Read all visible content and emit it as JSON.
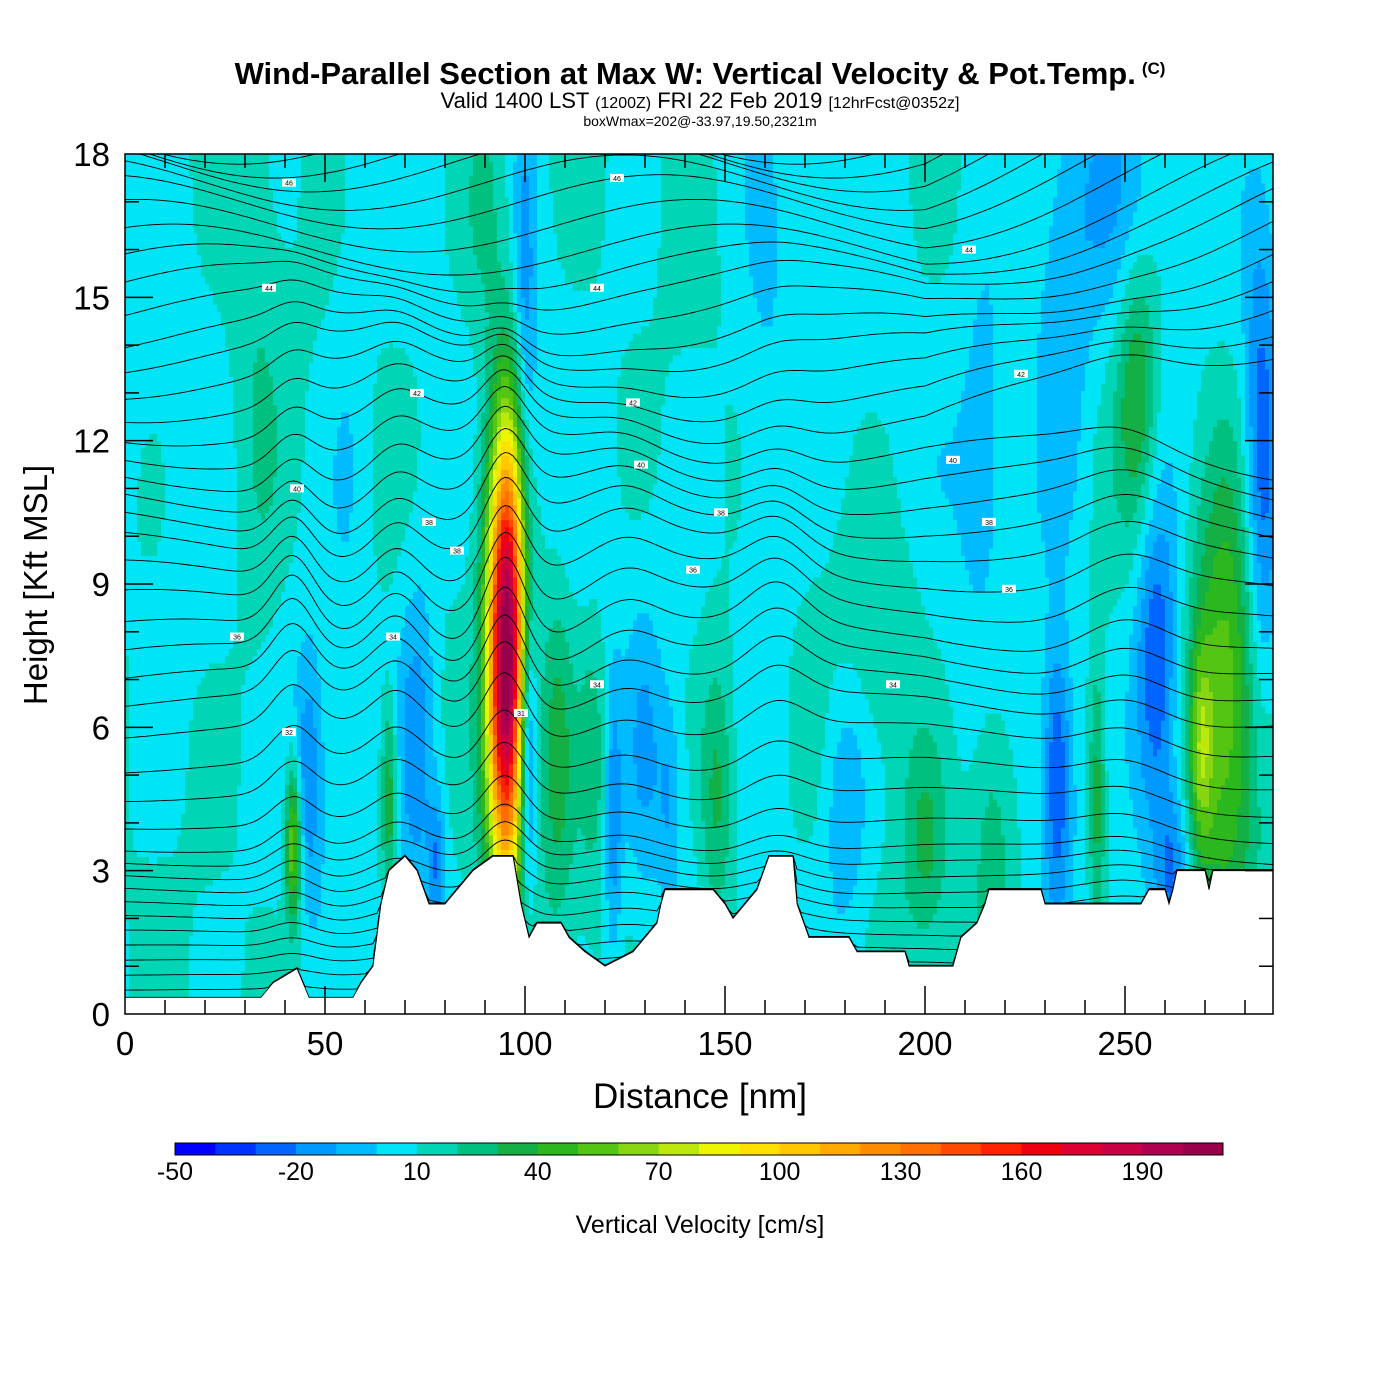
{
  "chart_data": {
    "type": "heatmap",
    "title": "Wind-Parallel Section at Max W: Vertical Velocity & Pot.Temp.",
    "title_mark": "(C)",
    "subtitle_parts": {
      "valid": "Valid 1400 LST",
      "zulu": "(1200Z)",
      "date": "FRI 22 Feb 2019",
      "forecast": "[12hrFcst@0352z]"
    },
    "box_info": "boxWmax=202@-33.97,19.50,2321m",
    "xlabel": "Distance [nm]",
    "ylabel": "Height [Kft MSL]",
    "xlim": [
      0,
      287
    ],
    "ylim": [
      0,
      18
    ],
    "x_ticks": [
      0,
      50,
      100,
      150,
      200,
      250
    ],
    "y_ticks": [
      0,
      3,
      6,
      9,
      12,
      15,
      18
    ],
    "colorbar": {
      "label": "Vertical Velocity [cm/s]",
      "min": -50,
      "max": 210,
      "step": 10,
      "tick_labels": [
        -50,
        -20,
        10,
        40,
        70,
        100,
        130,
        160,
        190
      ],
      "colors": [
        "#0000ff",
        "#0033ff",
        "#0066ff",
        "#0099ff",
        "#00bbff",
        "#00e5f5",
        "#00d5b5",
        "#00c080",
        "#15b045",
        "#2ab81e",
        "#55c514",
        "#88d511",
        "#bde80c",
        "#eef500",
        "#ffe000",
        "#ffc800",
        "#ffaa00",
        "#ff8c00",
        "#ff6e00",
        "#ff4a00",
        "#ff2200",
        "#ee0011",
        "#dd0033",
        "#c80044",
        "#b00050",
        "#98004a"
      ]
    },
    "background_w_cm_s": 8,
    "w_features": [
      {
        "x": 95.5,
        "z": 7.5,
        "sx": 3.2,
        "sz": 3.3,
        "w": 200
      },
      {
        "x": 92,
        "z": 6.5,
        "sx": 3,
        "sz": 3,
        "w": 20
      },
      {
        "x": 100.5,
        "z": 5.5,
        "sx": 1.6,
        "sz": 2.2,
        "w": -50
      },
      {
        "x": 42,
        "z": 3.6,
        "sx": 1.4,
        "sz": 1.2,
        "w": 55
      },
      {
        "x": 46,
        "z": 5,
        "sx": 2.5,
        "sz": 1.8,
        "w": -25
      },
      {
        "x": 66,
        "z": 4.5,
        "sx": 1.5,
        "sz": 1.5,
        "w": 35
      },
      {
        "x": 73,
        "z": 5.8,
        "sx": 3.5,
        "sz": 2.5,
        "w": -25
      },
      {
        "x": 78,
        "z": 3.2,
        "sx": 1.5,
        "sz": 1,
        "w": -25
      },
      {
        "x": 108,
        "z": 5.5,
        "sx": 3,
        "sz": 2.5,
        "w": 25
      },
      {
        "x": 117,
        "z": 5.5,
        "sx": 2.5,
        "sz": 2,
        "w": 18
      },
      {
        "x": 122,
        "z": 4,
        "sx": 1.5,
        "sz": 2,
        "w": -25
      },
      {
        "x": 130,
        "z": 5.5,
        "sx": 3,
        "sz": 2,
        "w": -15
      },
      {
        "x": 136,
        "z": 4.5,
        "sx": 2,
        "sz": 1.5,
        "w": -15
      },
      {
        "x": 148,
        "z": 4.5,
        "sx": 3,
        "sz": 2,
        "w": 25
      },
      {
        "x": 180,
        "z": 4.5,
        "sx": 4,
        "sz": 2,
        "w": -20
      },
      {
        "x": 200,
        "z": 3.5,
        "sx": 4,
        "sz": 1.5,
        "w": 22
      },
      {
        "x": 217,
        "z": 3.8,
        "sx": 4,
        "sz": 2.5,
        "w": 20
      },
      {
        "x": 233,
        "z": 5,
        "sx": 2.5,
        "sz": 2,
        "w": -38
      },
      {
        "x": 243,
        "z": 4.5,
        "sx": 1.5,
        "sz": 2,
        "w": 30
      },
      {
        "x": 258,
        "z": 7.2,
        "sx": 4,
        "sz": 2.5,
        "w": -42
      },
      {
        "x": 262,
        "z": 3,
        "sx": 3,
        "sz": 1.2,
        "w": -28
      },
      {
        "x": 275,
        "z": 6.5,
        "sx": 6,
        "sz": 3.5,
        "w": 48
      },
      {
        "x": 269,
        "z": 5.5,
        "sx": 2,
        "sz": 1.5,
        "w": 35
      },
      {
        "x": 253,
        "z": 13,
        "sx": 3.5,
        "sz": 2,
        "w": 32
      },
      {
        "x": 284,
        "z": 11.5,
        "sx": 3,
        "sz": 3.5,
        "w": -35
      },
      {
        "x": 234,
        "z": 14,
        "sx": 5,
        "sz": 3,
        "w": -18
      },
      {
        "x": 215,
        "z": 12,
        "sx": 5,
        "sz": 3,
        "w": -14
      },
      {
        "x": 245,
        "z": 17,
        "sx": 8,
        "sz": 2,
        "w": -15
      },
      {
        "x": 100,
        "z": 14.5,
        "sx": 2,
        "sz": 3.5,
        "w": -22
      },
      {
        "x": 90,
        "z": 17,
        "sx": 4,
        "sz": 2,
        "w": 18
      },
      {
        "x": 33,
        "z": 12,
        "sx": 5,
        "sz": 4,
        "w": 12
      },
      {
        "x": 56,
        "z": 12,
        "sx": 4,
        "sz": 4,
        "w": -8
      },
      {
        "x": 160,
        "z": 12,
        "sx": 5,
        "sz": 4,
        "w": -10
      },
      {
        "x": 188,
        "z": 8,
        "sx": 8,
        "sz": 2,
        "w": 12
      }
    ],
    "terrain": [
      [
        0,
        0.35
      ],
      [
        34,
        0.35
      ],
      [
        37,
        0.65
      ],
      [
        43,
        0.95
      ],
      [
        46,
        0.35
      ],
      [
        57,
        0.35
      ],
      [
        59,
        0.65
      ],
      [
        62,
        1.0
      ],
      [
        64,
        2.3
      ],
      [
        66,
        3.0
      ],
      [
        70,
        3.3
      ],
      [
        73,
        3.0
      ],
      [
        76,
        2.3
      ],
      [
        80,
        2.3
      ],
      [
        83,
        2.6
      ],
      [
        87,
        3.0
      ],
      [
        92,
        3.3
      ],
      [
        97,
        3.3
      ],
      [
        99,
        2.3
      ],
      [
        101,
        1.6
      ],
      [
        103,
        1.9
      ],
      [
        109,
        1.9
      ],
      [
        111,
        1.6
      ],
      [
        115,
        1.3
      ],
      [
        120,
        1.0
      ],
      [
        127,
        1.3
      ],
      [
        130,
        1.6
      ],
      [
        133,
        1.9
      ],
      [
        134,
        2.3
      ],
      [
        135,
        2.6
      ],
      [
        147,
        2.6
      ],
      [
        150,
        2.3
      ],
      [
        152,
        2.0
      ],
      [
        155,
        2.3
      ],
      [
        158,
        2.6
      ],
      [
        161,
        3.3
      ],
      [
        167,
        3.3
      ],
      [
        168,
        2.3
      ],
      [
        171,
        1.6
      ],
      [
        181,
        1.6
      ],
      [
        183,
        1.3
      ],
      [
        195,
        1.3
      ],
      [
        196,
        1.0
      ],
      [
        207,
        1.0
      ],
      [
        209,
        1.6
      ],
      [
        213,
        1.9
      ],
      [
        215,
        2.3
      ],
      [
        216,
        2.6
      ],
      [
        229,
        2.6
      ],
      [
        230,
        2.3
      ],
      [
        254,
        2.3
      ],
      [
        256,
        2.6
      ],
      [
        260,
        2.6
      ],
      [
        261,
        2.3
      ],
      [
        262,
        2.6
      ],
      [
        263,
        3.0
      ],
      [
        270,
        3.0
      ],
      [
        271,
        2.6
      ],
      [
        272,
        3.0
      ],
      [
        287,
        3.0
      ]
    ],
    "theta_contours": {
      "base_values": [
        294,
        294.5,
        295,
        295.5,
        296,
        296.5,
        297,
        297.5,
        298,
        298.5,
        299,
        300,
        301,
        302,
        303,
        304,
        305,
        306,
        307,
        308,
        309,
        310,
        311,
        312,
        313,
        314,
        315,
        316,
        317,
        318,
        319,
        320,
        321,
        322,
        323,
        324,
        325,
        326,
        327,
        328,
        329,
        330
      ],
      "level_kft_at_x0": [
        0.5,
        0.8,
        1.1,
        1.4,
        1.7,
        2.0,
        2.3,
        2.6,
        2.9,
        3.2,
        3.5,
        4.0,
        4.6,
        5.2,
        5.9,
        6.5,
        7.0,
        7.5,
        8.0,
        8.6,
        9.2,
        9.8,
        10.3,
        10.8,
        11.3,
        11.8,
        12.3,
        12.8,
        13.3,
        13.8,
        14.2,
        14.7,
        15.2,
        15.6,
        16.0,
        16.5,
        17.0,
        17.4,
        17.8,
        18.1,
        18.4,
        18.7
      ],
      "labels": [
        {
          "x": 41,
          "z": 5.9,
          "text": "32"
        },
        {
          "x": 28,
          "z": 7.9,
          "text": "36"
        },
        {
          "x": 67,
          "z": 7.9,
          "text": "34"
        },
        {
          "x": 83,
          "z": 9.7,
          "text": "38"
        },
        {
          "x": 76,
          "z": 10.3,
          "text": "38"
        },
        {
          "x": 43,
          "z": 11.0,
          "text": "40"
        },
        {
          "x": 73,
          "z": 13.0,
          "text": "42"
        },
        {
          "x": 36,
          "z": 15.2,
          "text": "44"
        },
        {
          "x": 41,
          "z": 17.4,
          "text": "46"
        },
        {
          "x": 118,
          "z": 15.2,
          "text": "44"
        },
        {
          "x": 123,
          "z": 17.5,
          "text": "46"
        },
        {
          "x": 127,
          "z": 12.8,
          "text": "42"
        },
        {
          "x": 129,
          "z": 11.5,
          "text": "40"
        },
        {
          "x": 149,
          "z": 10.5,
          "text": "38"
        },
        {
          "x": 142,
          "z": 9.3,
          "text": "36"
        },
        {
          "x": 118,
          "z": 6.9,
          "text": "34"
        },
        {
          "x": 99,
          "z": 6.3,
          "text": "31"
        },
        {
          "x": 192,
          "z": 6.9,
          "text": "34"
        },
        {
          "x": 207,
          "z": 11.6,
          "text": "40"
        },
        {
          "x": 216,
          "z": 10.3,
          "text": "38"
        },
        {
          "x": 221,
          "z": 8.9,
          "text": "36"
        },
        {
          "x": 224,
          "z": 13.4,
          "text": "42"
        },
        {
          "x": 211,
          "z": 16.0,
          "text": "44"
        }
      ]
    }
  }
}
